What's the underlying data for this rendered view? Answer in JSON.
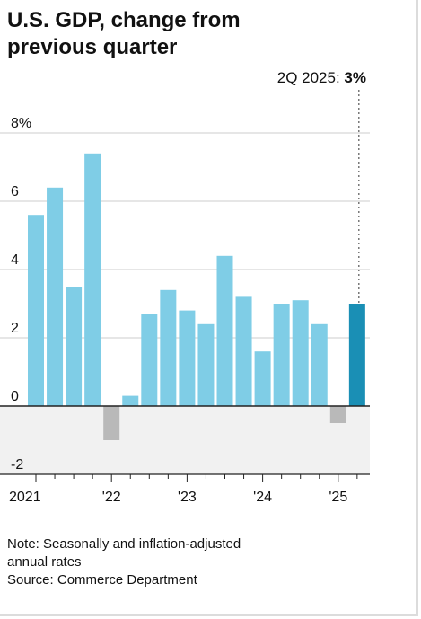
{
  "title_line1": "U.S. GDP, change from",
  "title_line2": "previous quarter",
  "callout": {
    "prefix": "2Q 2025: ",
    "value": "3%"
  },
  "note_line1": "Note: Seasonally and inflation-adjusted",
  "note_line2": "annual rates",
  "source": "Source: Commerce Department",
  "colors": {
    "positive_bar": "#7fcde6",
    "negative_bar": "#b9b9b9",
    "highlight_bar": "#1a8fb5",
    "gridline": "#cccccc",
    "negative_zone": "#f1f1f1",
    "axis": "#222222"
  },
  "chart_data": {
    "type": "bar",
    "title": "U.S. GDP, change from previous quarter",
    "categories": [
      "1Q 2021",
      "2Q 2021",
      "3Q 2021",
      "4Q 2021",
      "1Q 2022",
      "2Q 2022",
      "3Q 2022",
      "4Q 2022",
      "1Q 2023",
      "2Q 2023",
      "3Q 2023",
      "4Q 2023",
      "1Q 2024",
      "2Q 2024",
      "3Q 2024",
      "4Q 2024",
      "1Q 2025",
      "2Q 2025"
    ],
    "values": [
      5.6,
      6.4,
      3.5,
      7.4,
      -1.0,
      0.3,
      2.7,
      3.4,
      2.8,
      2.4,
      4.4,
      3.2,
      1.6,
      3.0,
      3.1,
      2.4,
      -0.5,
      3.0
    ],
    "highlight_index": 17,
    "ylim": [
      -2,
      8
    ],
    "y_ticks": [
      -2,
      0,
      2,
      4,
      6
    ],
    "y_tick_labels": [
      "-2",
      "0",
      "2",
      "4",
      "6"
    ],
    "y_top_label": "8%",
    "x_labels": [
      {
        "index": 0,
        "label": "2021"
      },
      {
        "index": 4,
        "label": "'22"
      },
      {
        "index": 8,
        "label": "'23"
      },
      {
        "index": 12,
        "label": "'24"
      },
      {
        "index": 16,
        "label": "'25"
      }
    ],
    "grid": true
  }
}
